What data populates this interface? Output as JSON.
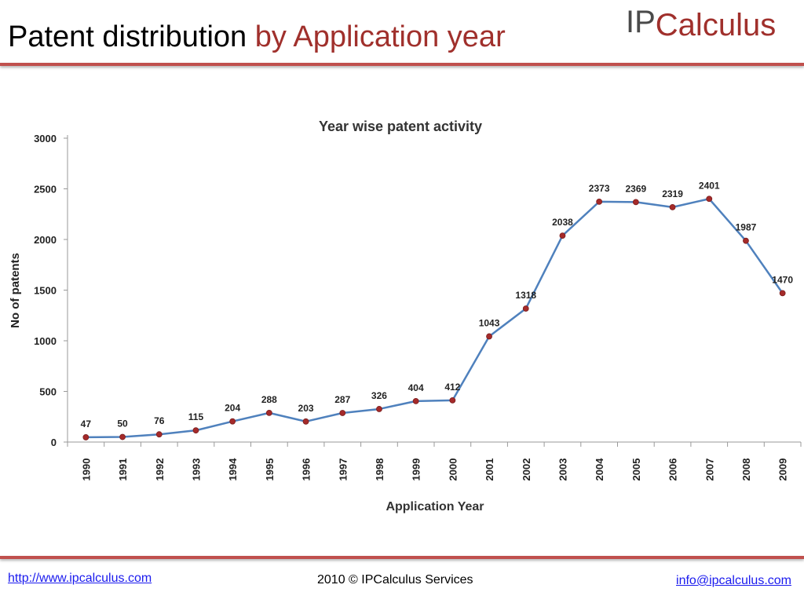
{
  "header": {
    "title_main": "Patent distribution",
    "title_accent": "by Application year",
    "logo_ip": "IP",
    "logo_rest": "Calculus"
  },
  "footer": {
    "website": "http://www.ipcalculus.com",
    "copyright": "2010 © IPCalculus Services",
    "email": "info@ipcalculus.com"
  },
  "colors": {
    "accent": "#a0302c",
    "rule": "#c0504d",
    "line": "#4f81bd",
    "marker": "#a52a2a"
  },
  "chart_data": {
    "type": "line",
    "title": "Year wise patent activity",
    "xlabel": "Application Year",
    "ylabel": "No of patents",
    "categories": [
      "1990",
      "1991",
      "1992",
      "1993",
      "1994",
      "1995",
      "1996",
      "1997",
      "1998",
      "1999",
      "2000",
      "2001",
      "2002",
      "2003",
      "2004",
      "2005",
      "2006",
      "2007",
      "2008",
      "2009"
    ],
    "values": [
      47,
      50,
      76,
      115,
      204,
      288,
      203,
      287,
      326,
      404,
      412,
      1043,
      1318,
      2038,
      2373,
      2369,
      2319,
      2401,
      1987,
      1470
    ],
    "yticks": [
      0,
      500,
      1000,
      1500,
      2000,
      2500,
      3000
    ],
    "ylim": [
      0,
      3000
    ],
    "grid": false,
    "legend": "none",
    "data_labels": true
  }
}
